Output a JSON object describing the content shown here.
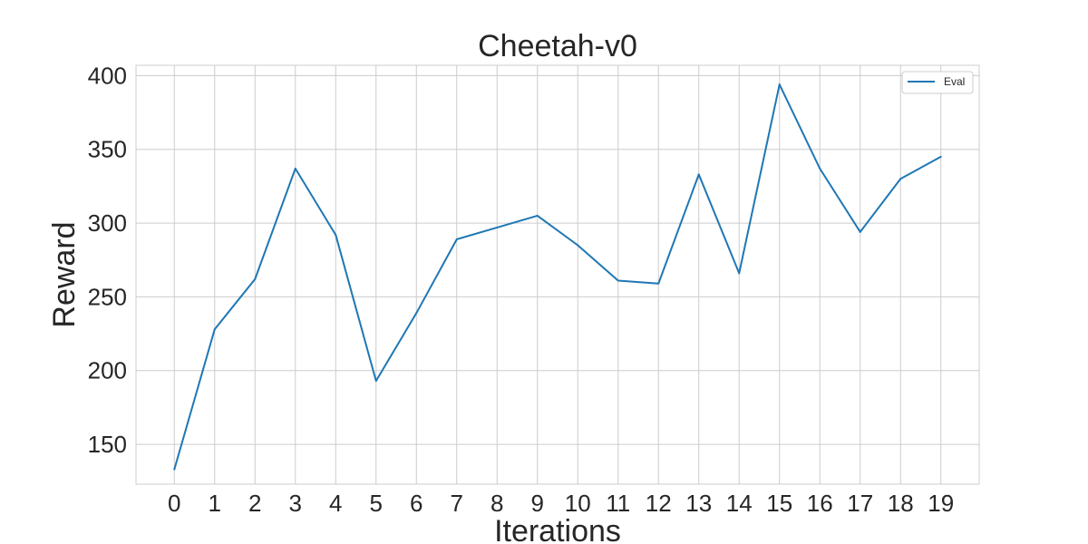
{
  "chart_data": {
    "type": "line",
    "title": "Cheetah-v0",
    "xlabel": "Iterations",
    "ylabel": "Reward",
    "x": [
      0,
      1,
      2,
      3,
      4,
      5,
      6,
      7,
      8,
      9,
      10,
      11,
      12,
      13,
      14,
      15,
      16,
      17,
      18,
      19
    ],
    "xtick_labels": [
      "0",
      "1",
      "2",
      "3",
      "4",
      "5",
      "6",
      "7",
      "8",
      "9",
      "10",
      "11",
      "12",
      "13",
      "14",
      "15",
      "16",
      "17",
      "18",
      "19"
    ],
    "yticks": [
      150,
      200,
      250,
      300,
      350,
      400
    ],
    "ytick_labels": [
      "150",
      "200",
      "250",
      "300",
      "350",
      "400"
    ],
    "xlim": [
      -0.95,
      19.95
    ],
    "ylim": [
      123,
      407
    ],
    "grid": true,
    "legend_position": "top-right",
    "series": [
      {
        "name": "Eval",
        "color": "#1f77b4",
        "values": [
          133,
          228,
          262,
          337,
          292,
          193,
          239,
          289,
          297,
          305,
          285,
          261,
          259,
          333,
          266,
          394,
          337,
          294,
          330,
          345
        ]
      }
    ]
  }
}
